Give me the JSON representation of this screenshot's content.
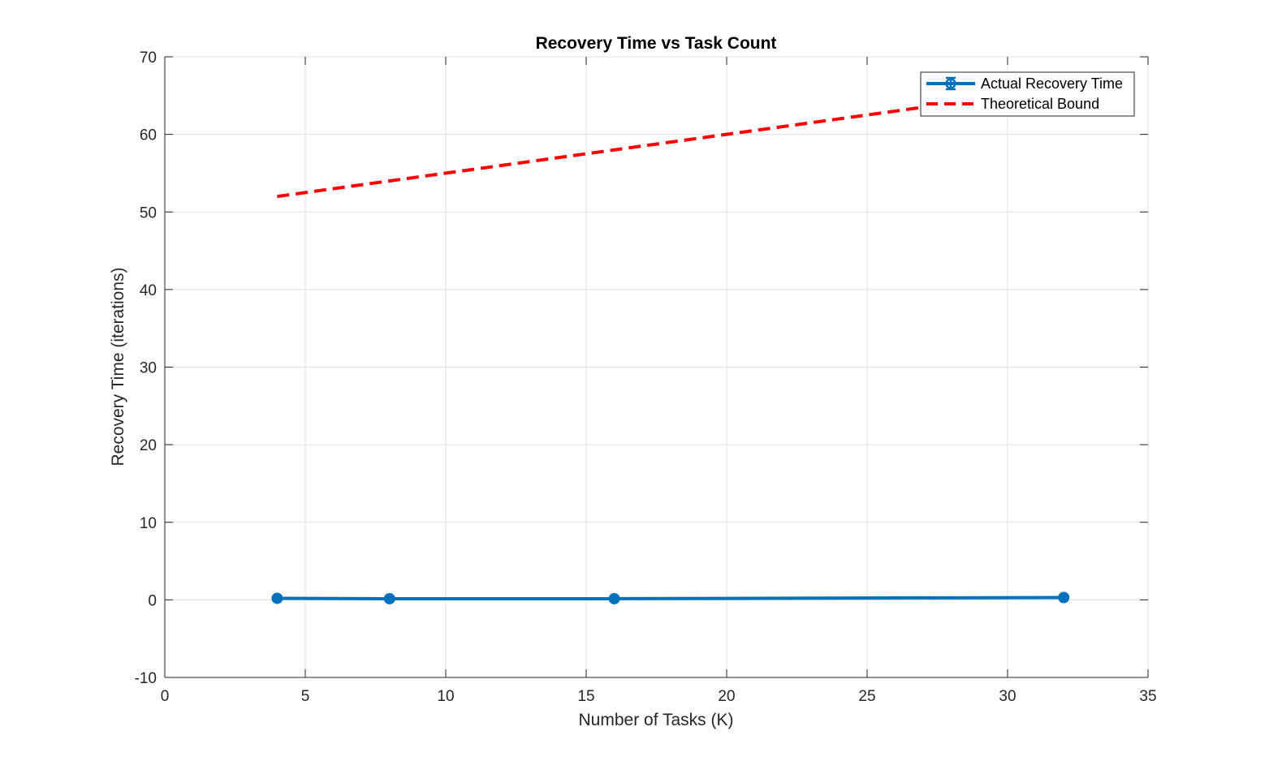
{
  "chart_data": {
    "type": "line",
    "title": "Recovery Time vs Task Count",
    "xlabel": "Number of Tasks (K)",
    "ylabel": "Recovery Time (iterations)",
    "xlim": [
      0,
      35
    ],
    "ylim": [
      -10,
      70
    ],
    "xticks": [
      0,
      5,
      10,
      15,
      20,
      25,
      30,
      35
    ],
    "yticks": [
      -10,
      0,
      10,
      20,
      30,
      40,
      50,
      60,
      70
    ],
    "xtick_labels": [
      "0",
      "5",
      "10",
      "15",
      "20",
      "25",
      "30",
      "35"
    ],
    "ytick_labels": [
      "-10",
      "0",
      "10",
      "20",
      "30",
      "40",
      "50",
      "60",
      "70"
    ],
    "grid": true,
    "legend_position": "top-right",
    "series": [
      {
        "name": "Actual Recovery Time",
        "style": "solid-with-markers-and-errorbars",
        "color": "#0072BD",
        "x": [
          4,
          8,
          16,
          32
        ],
        "y": [
          0.2,
          0.15,
          0.15,
          0.3
        ],
        "error": [
          0.2,
          0.15,
          0.15,
          0.4
        ]
      },
      {
        "name": "Theoretical Bound",
        "style": "dashed",
        "color": "#FF0000",
        "x": [
          4,
          8,
          16,
          32
        ],
        "y": [
          52,
          54,
          58,
          66
        ]
      }
    ]
  }
}
